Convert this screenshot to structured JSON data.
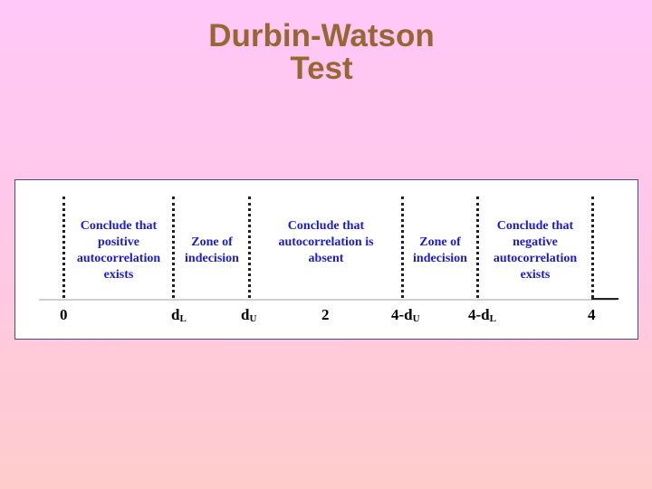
{
  "title": {
    "line1": "Durbin-Watson",
    "line2": "Test"
  },
  "regions": [
    {
      "lines": [
        "Conclude that",
        "positive",
        "autocorrelation",
        "exists"
      ]
    },
    {
      "lines": [
        "Zone of",
        "indecision"
      ]
    },
    {
      "lines": [
        "Conclude that",
        "autocorrelation is",
        "absent"
      ]
    },
    {
      "lines": [
        "Zone of",
        "indecision"
      ]
    },
    {
      "lines": [
        "Conclude that",
        "negative",
        "autocorrelation",
        "exists"
      ]
    }
  ],
  "ticks": [
    {
      "main": "0",
      "sub": ""
    },
    {
      "main": "d",
      "sub": "L"
    },
    {
      "main": "d",
      "sub": "U"
    },
    {
      "main": "2",
      "sub": ""
    },
    {
      "main": "4-d",
      "sub": "U"
    },
    {
      "main": "4-d",
      "sub": "L"
    },
    {
      "main": "4",
      "sub": ""
    }
  ],
  "colors": {
    "title": "#996633",
    "region_text": "#1a1ad8",
    "background_top": "#ffc8f8",
    "background_bottom": "#ffcccc"
  }
}
